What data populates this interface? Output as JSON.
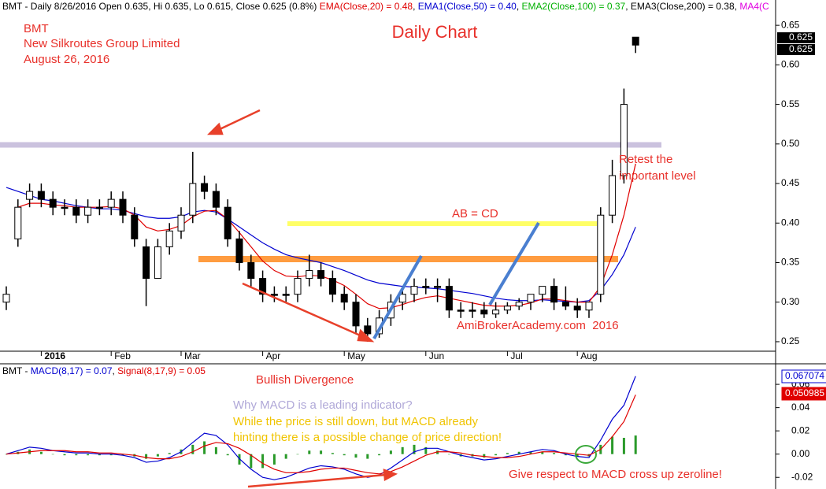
{
  "chart_data": [
    {
      "type": "candlestick",
      "title": "Daily Chart",
      "header": [
        {
          "text": "BMT - Daily 8/26/2016 Open 0.635, Hi 0.635, Lo 0.615, Close 0.625 (0.8%) ",
          "color": "#000000"
        },
        {
          "text": "EMA(Close,20) = 0.48",
          "color": "#e00000"
        },
        {
          "text": ", ",
          "color": "#000000"
        },
        {
          "text": "EMA1(Close,50) = 0.40",
          "color": "#0000d0"
        },
        {
          "text": ", ",
          "color": "#000000"
        },
        {
          "text": "EMA2(Close,100) = 0.37",
          "color": "#00b000"
        },
        {
          "text": ", ",
          "color": "#000000"
        },
        {
          "text": "EMA3(Close,200) = 0.38",
          "color": "#000000"
        },
        {
          "text": ", ",
          "color": "#000000"
        },
        {
          "text": "MA4(C",
          "color": "#e000e0"
        }
      ],
      "annotations": [
        "BMT",
        "New Silkroutes Group Limited",
        "August 26, 2016",
        "Retest the",
        "important level",
        "AB = CD",
        "AmiBrokerAcademy.com  2016"
      ],
      "categories": [
        null,
        null,
        null,
        "2016",
        null,
        null,
        null,
        null,
        null,
        "Feb",
        null,
        null,
        null,
        null,
        null,
        "Mar",
        null,
        null,
        null,
        null,
        null,
        null,
        "Apr",
        null,
        null,
        null,
        null,
        null,
        null,
        "May",
        null,
        null,
        null,
        null,
        null,
        null,
        "Jun",
        null,
        null,
        null,
        null,
        null,
        null,
        "Jul",
        null,
        null,
        null,
        null,
        null,
        "Aug",
        null,
        null,
        null,
        null,
        null
      ],
      "open": [
        0.3,
        0.38,
        0.43,
        0.44,
        0.43,
        0.42,
        0.42,
        0.41,
        0.42,
        0.42,
        0.43,
        0.41,
        0.37,
        0.33,
        0.37,
        0.39,
        0.41,
        0.45,
        0.44,
        0.42,
        0.38,
        0.35,
        0.33,
        0.31,
        0.31,
        0.31,
        0.33,
        0.34,
        0.33,
        0.31,
        0.3,
        0.27,
        0.26,
        0.28,
        0.3,
        0.31,
        0.32,
        0.32,
        0.32,
        0.29,
        0.29,
        0.29,
        0.285,
        0.29,
        0.295,
        0.3,
        0.31,
        0.32,
        0.3,
        0.295,
        0.29,
        0.31,
        0.41,
        0.46,
        0.635
      ],
      "high": [
        0.32,
        0.43,
        0.45,
        0.45,
        0.44,
        0.43,
        0.43,
        0.43,
        0.43,
        0.44,
        0.44,
        0.42,
        0.38,
        0.38,
        0.4,
        0.42,
        0.49,
        0.46,
        0.45,
        0.43,
        0.39,
        0.36,
        0.34,
        0.32,
        0.32,
        0.34,
        0.36,
        0.35,
        0.34,
        0.32,
        0.31,
        0.28,
        0.29,
        0.31,
        0.32,
        0.33,
        0.33,
        0.33,
        0.33,
        0.3,
        0.3,
        0.3,
        0.3,
        0.3,
        0.305,
        0.31,
        0.32,
        0.33,
        0.32,
        0.305,
        0.3,
        0.42,
        0.48,
        0.57,
        0.635
      ],
      "low": [
        0.29,
        0.37,
        0.42,
        0.42,
        0.41,
        0.41,
        0.4,
        0.4,
        0.41,
        0.41,
        0.4,
        0.37,
        0.295,
        0.33,
        0.36,
        0.38,
        0.4,
        0.43,
        0.41,
        0.37,
        0.34,
        0.32,
        0.3,
        0.3,
        0.3,
        0.3,
        0.32,
        0.32,
        0.3,
        0.29,
        0.26,
        0.25,
        0.255,
        0.27,
        0.29,
        0.3,
        0.31,
        0.3,
        0.28,
        0.28,
        0.28,
        0.28,
        0.28,
        0.285,
        0.29,
        0.29,
        0.3,
        0.29,
        0.29,
        0.28,
        0.28,
        0.3,
        0.4,
        0.45,
        0.615
      ],
      "close": [
        0.31,
        0.42,
        0.44,
        0.43,
        0.42,
        0.42,
        0.41,
        0.42,
        0.42,
        0.43,
        0.41,
        0.38,
        0.33,
        0.37,
        0.39,
        0.41,
        0.45,
        0.44,
        0.42,
        0.38,
        0.35,
        0.33,
        0.31,
        0.31,
        0.31,
        0.33,
        0.34,
        0.33,
        0.31,
        0.3,
        0.27,
        0.26,
        0.28,
        0.3,
        0.31,
        0.32,
        0.32,
        0.32,
        0.29,
        0.29,
        0.29,
        0.285,
        0.29,
        0.295,
        0.3,
        0.31,
        0.32,
        0.3,
        0.295,
        0.29,
        0.3,
        0.41,
        0.46,
        0.55,
        0.625
      ],
      "series": [
        {
          "color": "#0000d0",
          "values": [
            0.445,
            0.44,
            0.435,
            0.43,
            0.428,
            0.425,
            0.422,
            0.42,
            0.418,
            0.418,
            0.416,
            0.412,
            0.408,
            0.406,
            0.406,
            0.408,
            0.414,
            0.416,
            0.414,
            0.405,
            0.395,
            0.385,
            0.375,
            0.367,
            0.36,
            0.356,
            0.353,
            0.35,
            0.345,
            0.34,
            0.334,
            0.328,
            0.324,
            0.322,
            0.32,
            0.319,
            0.318,
            0.317,
            0.315,
            0.313,
            0.311,
            0.308,
            0.305,
            0.303,
            0.302,
            0.302,
            0.303,
            0.302,
            0.301,
            0.3,
            0.302,
            0.315,
            0.335,
            0.36,
            0.395
          ]
        },
        {
          "color": "#e00000",
          "values": [
            null,
            0.42,
            0.425,
            0.425,
            0.423,
            0.422,
            0.42,
            0.42,
            0.42,
            0.421,
            0.418,
            0.41,
            0.395,
            0.39,
            0.392,
            0.397,
            0.408,
            0.415,
            0.416,
            0.405,
            0.388,
            0.37,
            0.352,
            0.34,
            0.333,
            0.332,
            0.334,
            0.333,
            0.328,
            0.321,
            0.31,
            0.298,
            0.292,
            0.293,
            0.297,
            0.302,
            0.306,
            0.308,
            0.305,
            0.302,
            0.299,
            0.296,
            0.295,
            0.295,
            0.296,
            0.299,
            0.304,
            0.304,
            0.302,
            0.3,
            0.3,
            0.32,
            0.36,
            0.41,
            0.475
          ]
        }
      ],
      "price_tags": [
        "0.625",
        "0.625"
      ],
      "ylim": [
        0.239,
        0.682
      ],
      "yticks": [
        0.25,
        {
          "value": 0.3,
          "label": "0.30"
        },
        0.35,
        {
          "value": 0.4,
          "label": "0.40"
        },
        0.45,
        {
          "value": 0.5,
          "label": "0.50"
        },
        0.55,
        {
          "value": 0.6,
          "label": "0.60"
        },
        0.65
      ]
    },
    {
      "type": "macd",
      "header": [
        {
          "text": "BMT - ",
          "color": "#000000"
        },
        {
          "text": "MACD(8,17) = 0.07",
          "color": "#0000d0"
        },
        {
          "text": ", ",
          "color": "#000000"
        },
        {
          "text": "Signal(8,17,9) = 0.05",
          "color": "#e00000"
        }
      ],
      "annotations": [
        "Bullish Divergence",
        "Why MACD is a leading indicator?",
        "While the price is still down, but MACD already",
        "hinting there is a possible change of price direction!",
        "Give respect to MACD cross up zeroline!"
      ],
      "series": [
        {
          "type": "bar",
          "color": "#2a9a2a",
          "values": [
            0,
            0.002,
            0.004,
            0.002,
            0,
            -0.001,
            -0.001,
            -0.001,
            -0.001,
            -0.001,
            -0.001,
            -0.002,
            -0.004,
            -0.002,
            0.001,
            0.004,
            0.008,
            0.011,
            0.006,
            -0.001,
            -0.009,
            -0.012,
            -0.012,
            -0.009,
            -0.004,
            0,
            0.003,
            0.003,
            0.001,
            -0.001,
            -0.003,
            -0.004,
            -0.001,
            0.003,
            0.006,
            0.008,
            0.006,
            0.003,
            0,
            -0.002,
            -0.002,
            -0.003,
            -0.001,
            0.001,
            0.002,
            0.002,
            0.002,
            0.001,
            -0.001,
            -0.002,
            -0.002,
            0.008,
            0.015,
            0.014,
            0.016
          ]
        },
        {
          "type": "line",
          "color": "#0000d0",
          "values": [
            0,
            0.003,
            0.006,
            0.005,
            0.003,
            0.002,
            0.001,
            0.001,
            0,
            0,
            -0.001,
            -0.003,
            -0.007,
            -0.006,
            -0.003,
            0.002,
            0.01,
            0.018,
            0.016,
            0.008,
            -0.004,
            -0.013,
            -0.02,
            -0.022,
            -0.02,
            -0.016,
            -0.012,
            -0.01,
            -0.011,
            -0.013,
            -0.017,
            -0.02,
            -0.018,
            -0.012,
            -0.005,
            0.002,
            0.005,
            0.005,
            0.002,
            -0.001,
            -0.003,
            -0.005,
            -0.004,
            -0.002,
            0,
            0.002,
            0.004,
            0.003,
            0,
            -0.002,
            -0.003,
            0.012,
            0.03,
            0.042,
            0.067
          ]
        },
        {
          "type": "line",
          "color": "#e00000",
          "values": [
            0,
            0.001,
            0.002,
            0.003,
            0.003,
            0.003,
            0.002,
            0.002,
            0.001,
            0.001,
            0,
            -0.001,
            -0.003,
            -0.004,
            -0.004,
            -0.002,
            0.002,
            0.007,
            0.01,
            0.009,
            0.005,
            -0.001,
            -0.008,
            -0.013,
            -0.016,
            -0.016,
            -0.015,
            -0.013,
            -0.012,
            -0.012,
            -0.014,
            -0.016,
            -0.017,
            -0.015,
            -0.011,
            -0.006,
            -0.001,
            0.002,
            0.002,
            0.001,
            -0.001,
            -0.002,
            -0.003,
            -0.003,
            -0.002,
            0,
            0.002,
            0.002,
            0.001,
            0,
            -0.001,
            0.004,
            0.015,
            0.028,
            0.051
          ]
        }
      ],
      "tags": [
        "0.067074",
        "0.050985"
      ],
      "ylim": [
        -0.03,
        0.077
      ],
      "yticks": [
        -0.02,
        {
          "value": 0,
          "label": "0.00"
        },
        0.02,
        0.04,
        0.06
      ]
    }
  ]
}
